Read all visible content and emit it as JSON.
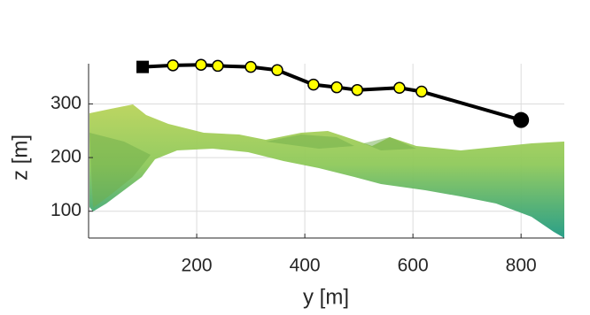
{
  "chart_data": {
    "type": "line",
    "xlabel": "y [m]",
    "ylabel": "z [m]",
    "x": [
      100,
      156,
      208,
      239,
      300,
      349,
      416,
      459,
      497,
      575,
      616,
      800
    ],
    "series": [
      {
        "color": "#000000",
        "marker_color": "#ffff00",
        "values": [
          369,
          372,
          373,
          371,
          369,
          363,
          336,
          331,
          326,
          330,
          323,
          270
        ]
      }
    ],
    "xlim": [
      0,
      880
    ],
    "ylim": [
      50,
      375
    ],
    "xticks": [
      200,
      400,
      600,
      800
    ],
    "yticks": [
      100,
      200,
      300
    ],
    "grid": true
  }
}
